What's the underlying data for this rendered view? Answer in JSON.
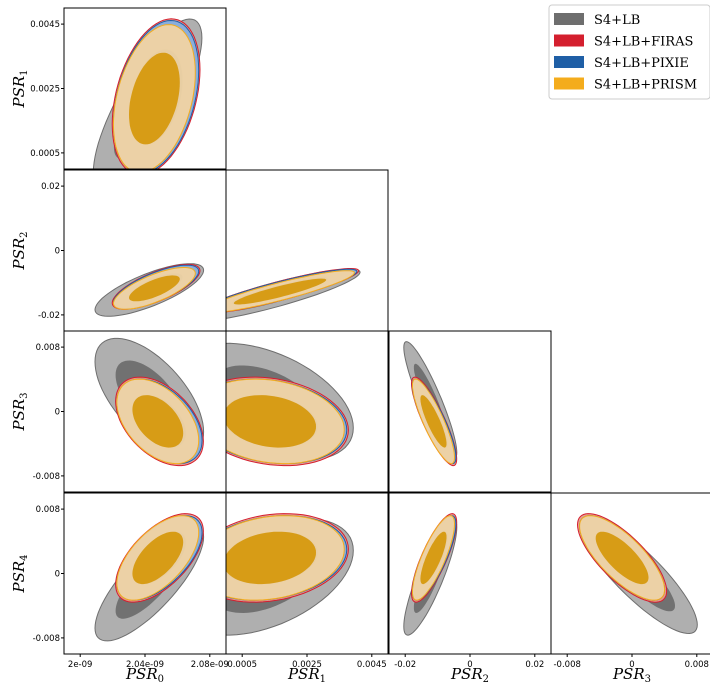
{
  "chart_data": {
    "type": "scatter",
    "title": "",
    "legend_position": "top-right",
    "series": [
      {
        "name": "S4+LB",
        "color": "#6e6e6e"
      },
      {
        "name": "S4+LB+FIRAS",
        "color": "#d41f2e"
      },
      {
        "name": "S4+LB+PIXIE",
        "color": "#1f5fa6"
      },
      {
        "name": "S4+LB+PRISM",
        "color": "#f4ac1c"
      }
    ],
    "parameters": [
      {
        "base": "PSR",
        "sub": "0"
      },
      {
        "base": "PSR",
        "sub": "1"
      },
      {
        "base": "PSR",
        "sub": "2"
      },
      {
        "base": "PSR",
        "sub": "3"
      },
      {
        "base": "PSR",
        "sub": "4"
      }
    ],
    "x_ticks": [
      [
        "2e-09",
        "2.04e-09",
        "2.08e-09"
      ],
      [
        "0.0005",
        "0.0025",
        "0.0045"
      ],
      [
        "-0.02",
        "0",
        "0.02"
      ],
      [
        "-0.008",
        "0",
        "0.008"
      ]
    ],
    "y_ticks": {
      "1": [
        "0.0045",
        "0.0025",
        "0.0005"
      ],
      "2": [
        "0.02",
        "0",
        "-0.02"
      ],
      "3": [
        "0.008",
        "0",
        "-0.008"
      ],
      "4": [
        "0.008",
        "0",
        "-0.008"
      ]
    },
    "ranges": {
      "0": [
        1.99e-09,
        2.085e-09
      ],
      "1": [
        0.0,
        0.0048
      ],
      "2": [
        -0.0255,
        0.0255
      ],
      "3": [
        -0.0098,
        0.0098
      ],
      "4": [
        -0.0098,
        0.0098
      ]
    },
    "panels": [
      {
        "x": 0,
        "y": 1,
        "contours": {
          "S4+LB": {
            "center": [
              2.039e-09,
              0.0019
            ],
            "sd": [
              1.3e-11,
              0.00105
            ],
            "rho": 0.78
          },
          "S4+LB+FIRAS": {
            "center": [
              2.044e-09,
              0.00215
            ],
            "sd": [
              1.05e-11,
              0.00095
            ],
            "rho": 0.35
          },
          "S4+LB+PIXIE": {
            "center": [
              2.044e-09,
              0.00215
            ],
            "sd": [
              1.02e-11,
              0.00093
            ],
            "rho": 0.35
          },
          "S4+LB+PRISM": {
            "center": [
              2.043e-09,
              0.0021
            ],
            "sd": [
              9.8e-12,
              0.0009
            ],
            "rho": 0.35
          }
        }
      },
      {
        "x": 0,
        "y": 2,
        "contours": {
          "S4+LB": {
            "center": [
              2.04e-09,
              -0.0125
            ],
            "sd": [
              1.3e-11,
              0.0034
            ],
            "rho": 0.75
          },
          "S4+LB+FIRAS": {
            "center": [
              2.044e-09,
              -0.0115
            ],
            "sd": [
              1.05e-11,
              0.0029
            ],
            "rho": 0.72
          },
          "S4+LB+PIXIE": {
            "center": [
              2.044e-09,
              -0.0115
            ],
            "sd": [
              1.02e-11,
              0.0028
            ],
            "rho": 0.72
          },
          "S4+LB+PRISM": {
            "center": [
              2.043e-09,
              -0.012
            ],
            "sd": [
              9.8e-12,
              0.0027
            ],
            "rho": 0.72
          }
        }
      },
      {
        "x": 1,
        "y": 2,
        "contours": {
          "S4+LB": {
            "center": [
              0.0014,
              -0.0142
            ],
            "sd": [
              0.00105,
              0.0034
            ],
            "rho": 0.88
          },
          "S4+LB+FIRAS": {
            "center": [
              0.0016,
              -0.0128
            ],
            "sd": [
              0.00095,
              0.0029
            ],
            "rho": 0.9
          },
          "S4+LB+PIXIE": {
            "center": [
              0.0016,
              -0.0128
            ],
            "sd": [
              0.00093,
              0.0028
            ],
            "rho": 0.9
          },
          "S4+LB+PRISM": {
            "center": [
              0.0016,
              -0.013
            ],
            "sd": [
              0.0009,
              0.0027
            ],
            "rho": 0.9
          }
        }
      },
      {
        "x": 0,
        "y": 3,
        "contours": {
          "S4+LB": {
            "center": [
              2.04e-09,
              0.0018
            ],
            "sd": [
              1.3e-11,
              0.0029
            ],
            "rho": -0.6
          },
          "S4+LB+FIRAS": {
            "center": [
              2.046e-09,
              -0.0012
            ],
            "sd": [
              1.05e-11,
              0.0022
            ],
            "rho": -0.45
          },
          "S4+LB+PIXIE": {
            "center": [
              2.046e-09,
              -0.0012
            ],
            "sd": [
              1.02e-11,
              0.0021
            ],
            "rho": -0.45
          },
          "S4+LB+PRISM": {
            "center": [
              2.045e-09,
              -0.0012
            ],
            "sd": [
              9.8e-12,
              0.0021
            ],
            "rho": -0.45
          }
        }
      },
      {
        "x": 1,
        "y": 3,
        "contours": {
          "S4+LB": {
            "center": [
              0.0012,
              0.0012
            ],
            "sd": [
              0.00105,
              0.0029
            ],
            "rho": -0.45
          },
          "S4+LB+FIRAS": {
            "center": [
              0.0013,
              -0.0012
            ],
            "sd": [
              0.00095,
              0.0022
            ],
            "rho": -0.2
          },
          "S4+LB+PIXIE": {
            "center": [
              0.0013,
              -0.0012
            ],
            "sd": [
              0.00093,
              0.0021
            ],
            "rho": -0.2
          },
          "S4+LB+PRISM": {
            "center": [
              0.0013,
              -0.0012
            ],
            "sd": [
              0.0009,
              0.0021
            ],
            "rho": -0.2
          }
        }
      },
      {
        "x": 2,
        "y": 3,
        "contours": {
          "S4+LB": {
            "center": [
              -0.0125,
              0.0014
            ],
            "sd": [
              0.0034,
              0.0029
            ],
            "rho": -0.9
          },
          "S4+LB+FIRAS": {
            "center": [
              -0.0113,
              -0.0012
            ],
            "sd": [
              0.0029,
              0.0022
            ],
            "rho": -0.85
          },
          "S4+LB+PIXIE": {
            "center": [
              -0.0113,
              -0.0012
            ],
            "sd": [
              0.0028,
              0.0021
            ],
            "rho": -0.85
          },
          "S4+LB+PRISM": {
            "center": [
              -0.0115,
              -0.0012
            ],
            "sd": [
              0.0027,
              0.0021
            ],
            "rho": -0.85
          }
        }
      },
      {
        "x": 0,
        "y": 4,
        "contours": {
          "S4+LB": {
            "center": [
              2.04e-09,
              -0.0011
            ],
            "sd": [
              1.3e-11,
              0.0029
            ],
            "rho": 0.78
          },
          "S4+LB+FIRAS": {
            "center": [
              2.046e-09,
              0.0019
            ],
            "sd": [
              1.05e-11,
              0.0022
            ],
            "rho": 0.6
          },
          "S4+LB+PIXIE": {
            "center": [
              2.046e-09,
              0.0019
            ],
            "sd": [
              1.02e-11,
              0.0021
            ],
            "rho": 0.6
          },
          "S4+LB+PRISM": {
            "center": [
              2.045e-09,
              0.0019
            ],
            "sd": [
              9.8e-12,
              0.0021
            ],
            "rho": 0.6
          }
        }
      },
      {
        "x": 1,
        "y": 4,
        "contours": {
          "S4+LB": {
            "center": [
              0.0012,
              -0.0004
            ],
            "sd": [
              0.00105,
              0.0029
            ],
            "rho": 0.45
          },
          "S4+LB+FIRAS": {
            "center": [
              0.0013,
              0.0019
            ],
            "sd": [
              0.00095,
              0.0022
            ],
            "rho": 0.2
          },
          "S4+LB+PIXIE": {
            "center": [
              0.0013,
              0.0019
            ],
            "sd": [
              0.00093,
              0.0021
            ],
            "rho": 0.2
          },
          "S4+LB+PRISM": {
            "center": [
              0.0013,
              0.0019
            ],
            "sd": [
              0.0009,
              0.0021
            ],
            "rho": 0.2
          }
        }
      },
      {
        "x": 2,
        "y": 4,
        "contours": {
          "S4+LB": {
            "center": [
              -0.0125,
              -0.0004
            ],
            "sd": [
              0.0034,
              0.0029
            ],
            "rho": 0.85
          },
          "S4+LB+FIRAS": {
            "center": [
              -0.0113,
              0.0019
            ],
            "sd": [
              0.0029,
              0.0022
            ],
            "rho": 0.8
          },
          "S4+LB+PIXIE": {
            "center": [
              -0.0113,
              0.0019
            ],
            "sd": [
              0.0028,
              0.0021
            ],
            "rho": 0.8
          },
          "S4+LB+PRISM": {
            "center": [
              -0.0115,
              0.0019
            ],
            "sd": [
              0.0027,
              0.0021
            ],
            "rho": 0.8
          }
        }
      },
      {
        "x": 3,
        "y": 4,
        "contours": {
          "S4+LB": {
            "center": [
              0.0008,
              -0.0002
            ],
            "sd": [
              0.0029,
              0.0029
            ],
            "rho": -0.85
          },
          "S4+LB+FIRAS": {
            "center": [
              -0.0012,
              0.0019
            ],
            "sd": [
              0.0022,
              0.0022
            ],
            "rho": -0.75
          },
          "S4+LB+PIXIE": {
            "center": [
              -0.0012,
              0.0019
            ],
            "sd": [
              0.0021,
              0.0021
            ],
            "rho": -0.75
          },
          "S4+LB+PRISM": {
            "center": [
              -0.0012,
              0.0019
            ],
            "sd": [
              0.0021,
              0.0021
            ],
            "rho": -0.75
          }
        }
      }
    ]
  }
}
